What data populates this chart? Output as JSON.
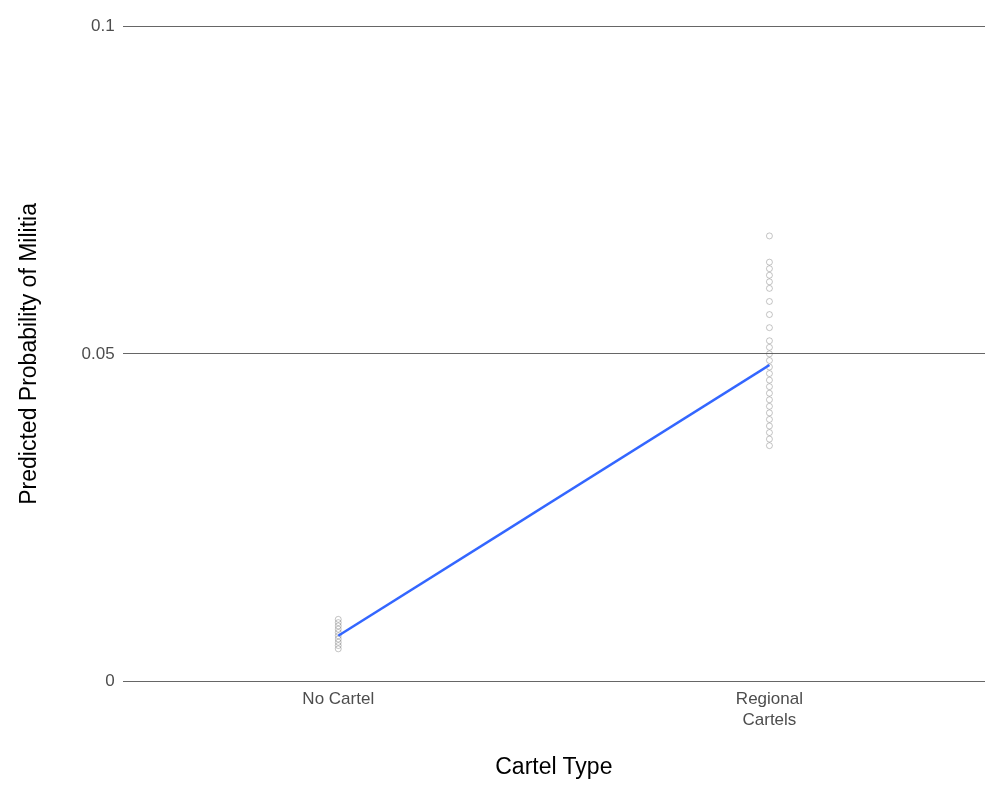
{
  "chart_data": {
    "type": "line",
    "xlabel": "Cartel Type",
    "ylabel": "Predicted Probability of Militia",
    "categories": [
      "No Cartel",
      "Regional Cartels"
    ],
    "series": [
      {
        "color": "#3366ff",
        "values": [
          0.007,
          0.0483
        ]
      },
      {
        "type": "scatter",
        "marker": "circle",
        "color": "#555555",
        "x": [
          "No Cartel",
          "No Cartel",
          "No Cartel",
          "No Cartel",
          "No Cartel",
          "No Cartel",
          "No Cartel",
          "No Cartel",
          "No Cartel",
          "No Cartel"
        ],
        "values": [
          0.0095,
          0.009,
          0.0085,
          0.008,
          0.0075,
          0.007,
          0.0065,
          0.006,
          0.0055,
          0.005
        ]
      },
      {
        "type": "scatter",
        "marker": "circle",
        "color": "#555555",
        "x": [
          "Regional Cartels",
          "Regional Cartels",
          "Regional Cartels",
          "Regional Cartels",
          "Regional Cartels",
          "Regional Cartels",
          "Regional Cartels",
          "Regional Cartels",
          "Regional Cartels",
          "Regional Cartels",
          "Regional Cartels",
          "Regional Cartels",
          "Regional Cartels",
          "Regional Cartels",
          "Regional Cartels",
          "Regional Cartels",
          "Regional Cartels",
          "Regional Cartels",
          "Regional Cartels",
          "Regional Cartels",
          "Regional Cartels",
          "Regional Cartels",
          "Regional Cartels",
          "Regional Cartels",
          "Regional Cartels",
          "Regional Cartels"
        ],
        "values": [
          0.068,
          0.064,
          0.063,
          0.062,
          0.061,
          0.06,
          0.058,
          0.056,
          0.054,
          0.052,
          0.051,
          0.05,
          0.049,
          0.048,
          0.047,
          0.046,
          0.045,
          0.044,
          0.043,
          0.042,
          0.041,
          0.04,
          0.039,
          0.038,
          0.037,
          0.036
        ]
      }
    ],
    "ylim": [
      0,
      0.1
    ],
    "yticks": [
      0,
      0.05,
      0.1
    ],
    "grid": "y",
    "legend": false
  }
}
